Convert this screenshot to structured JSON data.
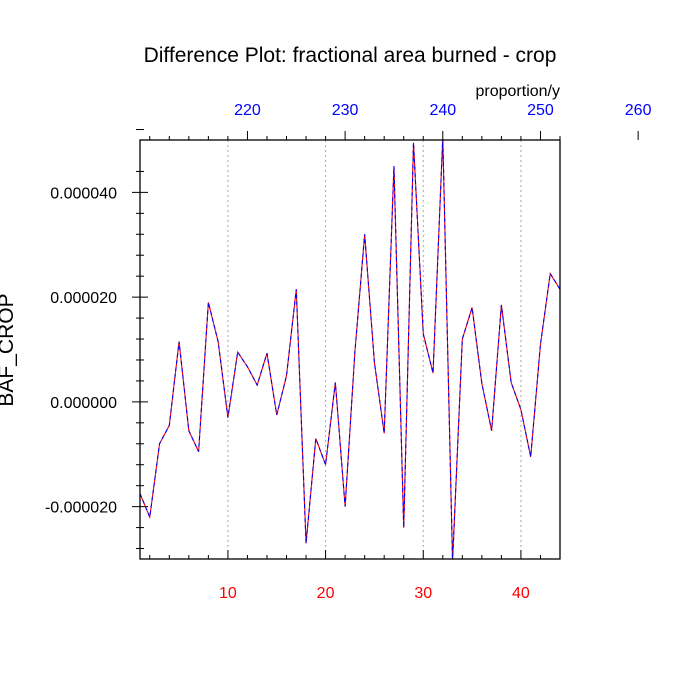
{
  "chart_data": {
    "type": "line",
    "title": "Difference Plot: fractional area burned - crop",
    "ylabel": "BAF_CROP",
    "units_label": "proportion/y",
    "xlim": [
      1,
      44
    ],
    "ylim": [
      -3e-05,
      5e-05
    ],
    "grid": "vertical dotted lines at bottom-axis major ticks",
    "bottom_axis": {
      "color": "#ff0000",
      "ticks": [
        10,
        20,
        30,
        40
      ],
      "tick_labels": [
        "10",
        "20",
        "30",
        "40"
      ]
    },
    "top_axis": {
      "color": "#0000ff",
      "ticks": [
        220,
        230,
        240,
        250,
        260
      ],
      "tick_labels": [
        "220",
        "230",
        "240",
        "250",
        "260"
      ],
      "offset_from_bottom": 208
    },
    "left_axis": {
      "ticks": [
        -2e-05,
        0.0,
        2e-05,
        4e-05
      ],
      "tick_labels": [
        "-0.000020",
        "0.000000",
        "0.000020",
        "0.000040"
      ]
    },
    "series": [
      {
        "line_colors": [
          "#ff0000",
          "#0000ff"
        ],
        "line_style": "dashed",
        "x": [
          1,
          2,
          3,
          4,
          5,
          6,
          7,
          8,
          9,
          10,
          11,
          12,
          13,
          14,
          15,
          16,
          17,
          18,
          19,
          20,
          21,
          22,
          23,
          24,
          25,
          26,
          27,
          28,
          29,
          30,
          31,
          32,
          33,
          34,
          35,
          36,
          37,
          38,
          39,
          40,
          41,
          42,
          43,
          44
        ],
        "values": [
          -1.75e-05,
          -2.2e-05,
          -8e-06,
          -4.5e-06,
          1.15e-05,
          -5.5e-06,
          -9.5e-06,
          1.9e-05,
          1.15e-05,
          -3e-06,
          9.5e-06,
          6.7e-06,
          3.2e-06,
          9.3e-06,
          -2.5e-06,
          5e-06,
          2.15e-05,
          -2.7e-05,
          -7e-06,
          -1.2e-05,
          3.7e-06,
          -2e-05,
          9.5e-06,
          3.2e-05,
          7.5e-06,
          -6e-06,
          4.5e-05,
          -2.4e-05,
          4.95e-05,
          1.3e-05,
          5.5e-06,
          5.05e-05,
          -3.05e-05,
          1.2e-05,
          1.8e-05,
          3.5e-06,
          -5.5e-06,
          1.85e-05,
          3.7e-06,
          -1.5e-06,
          -1.05e-05,
          1.1e-05,
          2.45e-05,
          2.15e-05
        ]
      }
    ]
  }
}
